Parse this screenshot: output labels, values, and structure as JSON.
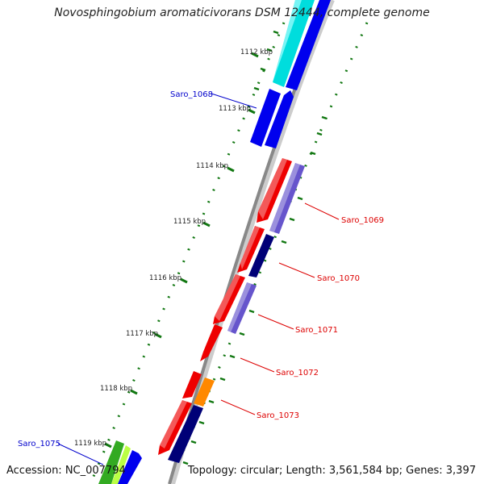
{
  "title": "Novosphingobium aromaticivorans DSM 12444, complete genome",
  "footer": {
    "accession": "Accession: NC_007794",
    "summary": "Topology: circular; Length: 3,561,584 bp; Genes: 3,397"
  },
  "ruler": {
    "labels": [
      {
        "text": "1112 kbp"
      },
      {
        "text": "1113 kbp"
      },
      {
        "text": "1114 kbp"
      },
      {
        "text": "1115 kbp"
      },
      {
        "text": "1116 kbp"
      },
      {
        "text": "1117 kbp"
      },
      {
        "text": "1118 kbp"
      },
      {
        "text": "1119 kbp"
      }
    ]
  },
  "genes": [
    {
      "label": "Saro_1068",
      "color": "#0000cc"
    },
    {
      "label": "Saro_1069",
      "color": "#dd0000"
    },
    {
      "label": "Saro_1070",
      "color": "#dd0000"
    },
    {
      "label": "Saro_1071",
      "color": "#dd0000"
    },
    {
      "label": "Saro_1072",
      "color": "#dd0000"
    },
    {
      "label": "Saro_1073",
      "color": "#dd0000"
    },
    {
      "label": "Saro_1075",
      "color": "#0000cc"
    }
  ],
  "colors": {
    "backbone": "#888888",
    "tick": "#117711",
    "red_feature": "#ee0000",
    "blue_feature": "#0000ee",
    "lavender_feature": "#6655cc",
    "navy_feature": "#000077",
    "cyan_feature": "#00dddd",
    "orange_feature": "#ff8800",
    "green_feature": "#33aa22"
  }
}
